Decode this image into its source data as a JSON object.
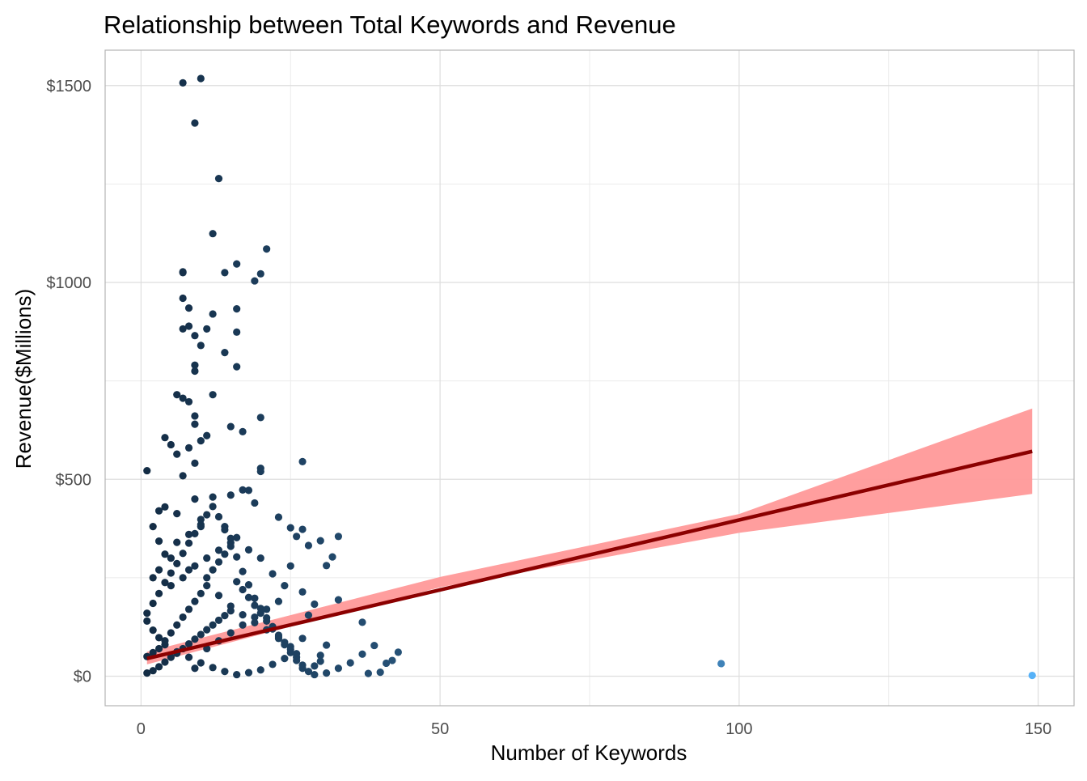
{
  "chart_data": {
    "type": "scatter",
    "title": "Relationship between Total Keywords and Revenue",
    "xlabel": "Number of Keywords",
    "ylabel": "Revenue($Millions)",
    "xlim": [
      -6,
      156
    ],
    "ylim": [
      -75,
      1590
    ],
    "x_ticks": [
      {
        "value": 0,
        "label": "0"
      },
      {
        "value": 50,
        "label": "50"
      },
      {
        "value": 100,
        "label": "100"
      },
      {
        "value": 150,
        "label": "150"
      }
    ],
    "y_ticks": [
      {
        "value": 0,
        "label": "$0"
      },
      {
        "value": 500,
        "label": "$500"
      },
      {
        "value": 1000,
        "label": "$1000"
      },
      {
        "value": 1500,
        "label": "$1500"
      }
    ],
    "x_minor": [
      25,
      75,
      125
    ],
    "y_minor": [
      250,
      750,
      1250
    ],
    "grid": true,
    "legend": "none",
    "point_color_low": "#132b43",
    "point_color_high": "#56b1f7",
    "point_color_range": [
      0,
      149
    ],
    "trend_color": "#8b0000",
    "band_color": "#ff9999",
    "trend_line": {
      "x": [
        1,
        149
      ],
      "y": [
        45,
        571
      ]
    },
    "confidence_band": {
      "x": [
        1,
        50,
        100,
        149
      ],
      "lower": [
        30,
        226,
        364,
        463
      ],
      "upper": [
        62,
        252,
        412,
        680
      ]
    },
    "points": [
      [
        7,
        1507
      ],
      [
        10,
        1518
      ],
      [
        9,
        1405
      ],
      [
        13,
        1264
      ],
      [
        12,
        1124
      ],
      [
        21,
        1085
      ],
      [
        7,
        1027
      ],
      [
        7,
        1025
      ],
      [
        16,
        1047
      ],
      [
        14,
        1025
      ],
      [
        20,
        1022
      ],
      [
        19,
        1004
      ],
      [
        7,
        960
      ],
      [
        8,
        935
      ],
      [
        12,
        920
      ],
      [
        16,
        933
      ],
      [
        11,
        882
      ],
      [
        7,
        882
      ],
      [
        8,
        889
      ],
      [
        16,
        874
      ],
      [
        9,
        865
      ],
      [
        10,
        840
      ],
      [
        14,
        822
      ],
      [
        9,
        790
      ],
      [
        9,
        775
      ],
      [
        16,
        786
      ],
      [
        6,
        715
      ],
      [
        7,
        706
      ],
      [
        8,
        697
      ],
      [
        12,
        715
      ],
      [
        9,
        661
      ],
      [
        4,
        606
      ],
      [
        11,
        611
      ],
      [
        15,
        634
      ],
      [
        17,
        621
      ],
      [
        20,
        657
      ],
      [
        9,
        640
      ],
      [
        10,
        598
      ],
      [
        5,
        588
      ],
      [
        8,
        580
      ],
      [
        1,
        522
      ],
      [
        20,
        528
      ],
      [
        20,
        520
      ],
      [
        27,
        545
      ],
      [
        6,
        564
      ],
      [
        9,
        541
      ],
      [
        7,
        509
      ],
      [
        17,
        473
      ],
      [
        18,
        472
      ],
      [
        12,
        455
      ],
      [
        15,
        460
      ],
      [
        9,
        450
      ],
      [
        3,
        420
      ],
      [
        4,
        430
      ],
      [
        19,
        440
      ],
      [
        23,
        404
      ],
      [
        25,
        377
      ],
      [
        26,
        355
      ],
      [
        27,
        373
      ],
      [
        30,
        344
      ],
      [
        32,
        303
      ],
      [
        31,
        281
      ],
      [
        33,
        355
      ],
      [
        28,
        332
      ],
      [
        37,
        137
      ],
      [
        39,
        78
      ],
      [
        37,
        56
      ],
      [
        41,
        33
      ],
      [
        38,
        7
      ],
      [
        40,
        10
      ],
      [
        42,
        40
      ],
      [
        43,
        61
      ],
      [
        35,
        34
      ],
      [
        33,
        20
      ],
      [
        31,
        8
      ],
      [
        29,
        4
      ],
      [
        30,
        53
      ],
      [
        31,
        79
      ],
      [
        27,
        96
      ],
      [
        28,
        155
      ],
      [
        29,
        183
      ],
      [
        33,
        194
      ],
      [
        27,
        214
      ],
      [
        24,
        230
      ],
      [
        22,
        260
      ],
      [
        25,
        280
      ],
      [
        20,
        300
      ],
      [
        18,
        321
      ],
      [
        16,
        352
      ],
      [
        14,
        380
      ],
      [
        10,
        398
      ],
      [
        6,
        413
      ],
      [
        2,
        380
      ],
      [
        3,
        343
      ],
      [
        5,
        300
      ],
      [
        8,
        270
      ],
      [
        11,
        230
      ],
      [
        13,
        205
      ],
      [
        15,
        178
      ],
      [
        17,
        156
      ],
      [
        19,
        136
      ],
      [
        21,
        118
      ],
      [
        23,
        96
      ],
      [
        25,
        75
      ],
      [
        26,
        57
      ],
      [
        24,
        45
      ],
      [
        22,
        30
      ],
      [
        20,
        16
      ],
      [
        18,
        9
      ],
      [
        16,
        4
      ],
      [
        14,
        12
      ],
      [
        12,
        22
      ],
      [
        10,
        34
      ],
      [
        8,
        48
      ],
      [
        6,
        62
      ],
      [
        4,
        80
      ],
      [
        3,
        98
      ],
      [
        2,
        117
      ],
      [
        1,
        140
      ],
      [
        1,
        160
      ],
      [
        2,
        185
      ],
      [
        3,
        210
      ],
      [
        4,
        238
      ],
      [
        5,
        262
      ],
      [
        6,
        286
      ],
      [
        7,
        312
      ],
      [
        8,
        338
      ],
      [
        9,
        362
      ],
      [
        10,
        385
      ],
      [
        11,
        410
      ],
      [
        12,
        431
      ],
      [
        13,
        405
      ],
      [
        14,
        372
      ],
      [
        15,
        339
      ],
      [
        16,
        303
      ],
      [
        17,
        266
      ],
      [
        18,
        232
      ],
      [
        19,
        198
      ],
      [
        20,
        172
      ],
      [
        21,
        148
      ],
      [
        22,
        126
      ],
      [
        23,
        104
      ],
      [
        24,
        86
      ],
      [
        25,
        68
      ],
      [
        26,
        48
      ],
      [
        27,
        28
      ],
      [
        28,
        12
      ],
      [
        29,
        26
      ],
      [
        30,
        38
      ],
      [
        1,
        8
      ],
      [
        2,
        14
      ],
      [
        3,
        24
      ],
      [
        4,
        36
      ],
      [
        5,
        48
      ],
      [
        6,
        58
      ],
      [
        7,
        70
      ],
      [
        8,
        82
      ],
      [
        9,
        94
      ],
      [
        10,
        106
      ],
      [
        11,
        118
      ],
      [
        12,
        130
      ],
      [
        13,
        142
      ],
      [
        14,
        154
      ],
      [
        15,
        166
      ],
      [
        1,
        50
      ],
      [
        2,
        60
      ],
      [
        3,
        70
      ],
      [
        4,
        90
      ],
      [
        5,
        110
      ],
      [
        6,
        130
      ],
      [
        7,
        150
      ],
      [
        8,
        170
      ],
      [
        9,
        190
      ],
      [
        10,
        210
      ],
      [
        11,
        250
      ],
      [
        12,
        270
      ],
      [
        13,
        290
      ],
      [
        14,
        310
      ],
      [
        15,
        330
      ],
      [
        16,
        240
      ],
      [
        17,
        220
      ],
      [
        18,
        200
      ],
      [
        19,
        180
      ],
      [
        20,
        160
      ],
      [
        21,
        140
      ],
      [
        22,
        120
      ],
      [
        23,
        100
      ],
      [
        24,
        80
      ],
      [
        25,
        60
      ],
      [
        26,
        40
      ],
      [
        27,
        20
      ],
      [
        9,
        20
      ],
      [
        11,
        70
      ],
      [
        13,
        90
      ],
      [
        15,
        110
      ],
      [
        17,
        130
      ],
      [
        19,
        150
      ],
      [
        21,
        170
      ],
      [
        23,
        190
      ],
      [
        5,
        230
      ],
      [
        7,
        250
      ],
      [
        9,
        280
      ],
      [
        11,
        300
      ],
      [
        13,
        320
      ],
      [
        15,
        350
      ],
      [
        3,
        270
      ],
      [
        4,
        310
      ],
      [
        2,
        250
      ],
      [
        6,
        340
      ],
      [
        8,
        360
      ],
      [
        10,
        380
      ],
      [
        97,
        32
      ],
      [
        149,
        2
      ]
    ]
  }
}
